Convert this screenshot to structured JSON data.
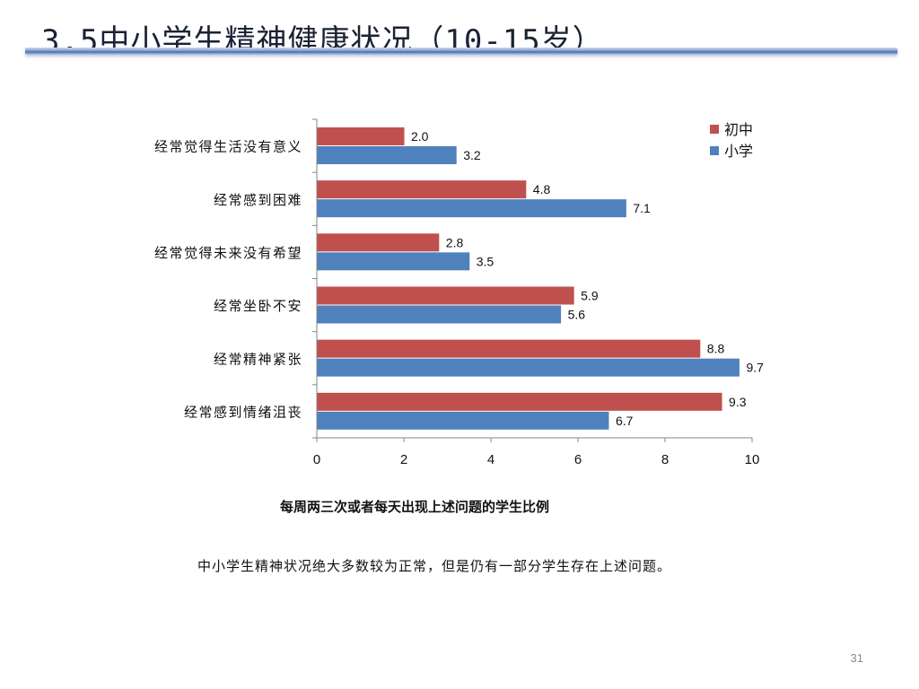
{
  "slide": {
    "title": "3.5中小学生精神健康状况（10-15岁）",
    "caption": "每周两三次或者每天出现上述问题的学生比例",
    "summary": "中小学生精神状况绝大多数较为正常，但是仍有一部分学生存在上述问题。",
    "page_number": "31"
  },
  "chart_data": {
    "type": "bar",
    "orientation": "horizontal",
    "categories": [
      "经常觉得生活没有意义",
      "经常感到困难",
      "经常觉得未来没有希望",
      "经常坐卧不安",
      "经常精神紧张",
      "经常感到情绪沮丧"
    ],
    "series": [
      {
        "name": "初中",
        "color": "#c0504d",
        "values": [
          2.0,
          4.8,
          2.8,
          5.9,
          8.8,
          9.3
        ]
      },
      {
        "name": "小学",
        "color": "#4f81bd",
        "values": [
          3.2,
          7.1,
          3.5,
          5.6,
          9.7,
          6.7
        ]
      }
    ],
    "xlim": [
      0,
      10
    ],
    "x_ticks": [
      0,
      2,
      4,
      6,
      8,
      10
    ],
    "legend": "top-right",
    "grid": false,
    "xlabel": "",
    "ylabel": ""
  }
}
